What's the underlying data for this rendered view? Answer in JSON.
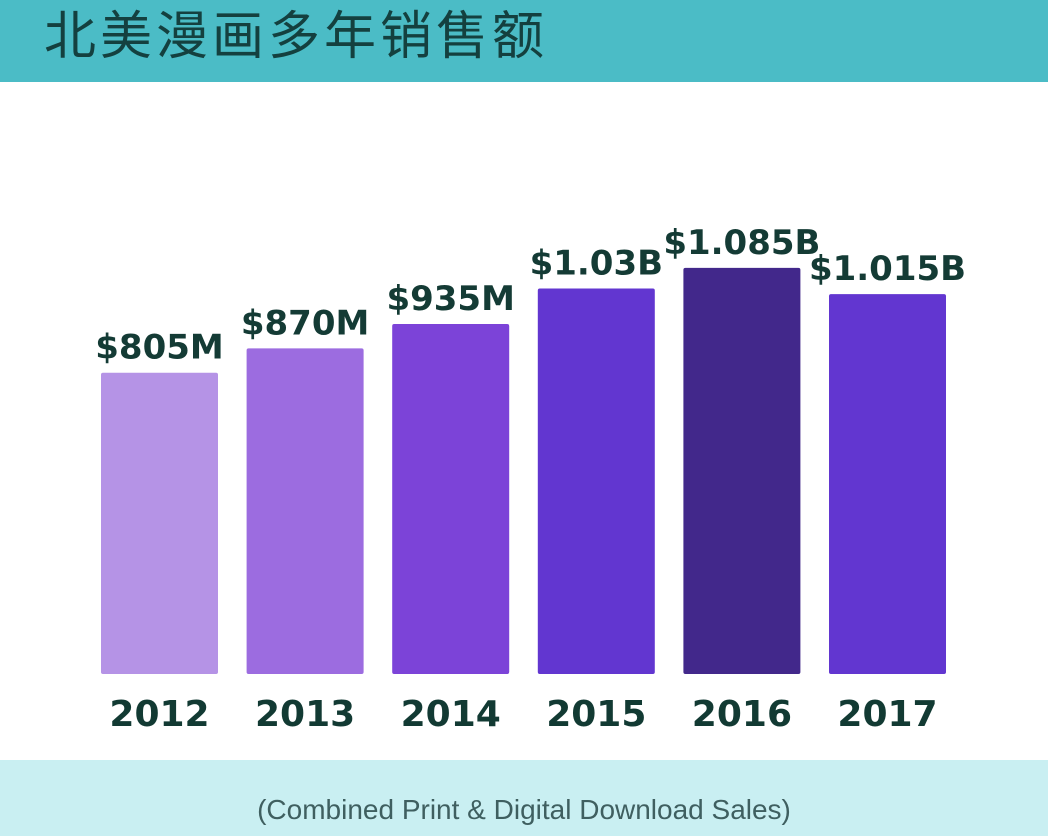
{
  "header": {
    "title": "北美漫画多年销售额"
  },
  "footer": {
    "note": "(Combined Print & Digital Download Sales)"
  },
  "colors": {
    "header_band": "#4bbcc6",
    "footer_band": "#c9eff2",
    "bars": [
      "#b593e6",
      "#9c6ce0",
      "#7c43d8",
      "#6236d0",
      "#42288b",
      "#6236d0"
    ]
  },
  "chart_data": {
    "type": "bar",
    "title": "北美漫画多年销售额",
    "subtitle": "(Combined Print & Digital Download Sales)",
    "categories": [
      "2012",
      "2013",
      "2014",
      "2015",
      "2016",
      "2017"
    ],
    "values": [
      805,
      870,
      935,
      1030,
      1085,
      1015
    ],
    "value_unit": "million USD",
    "data_labels": [
      "$805M",
      "$870M",
      "$935M",
      "$1.03B",
      "$1.085B",
      "$1.015B"
    ],
    "xlabel": "",
    "ylabel": "",
    "grid": false,
    "legend": "none"
  }
}
